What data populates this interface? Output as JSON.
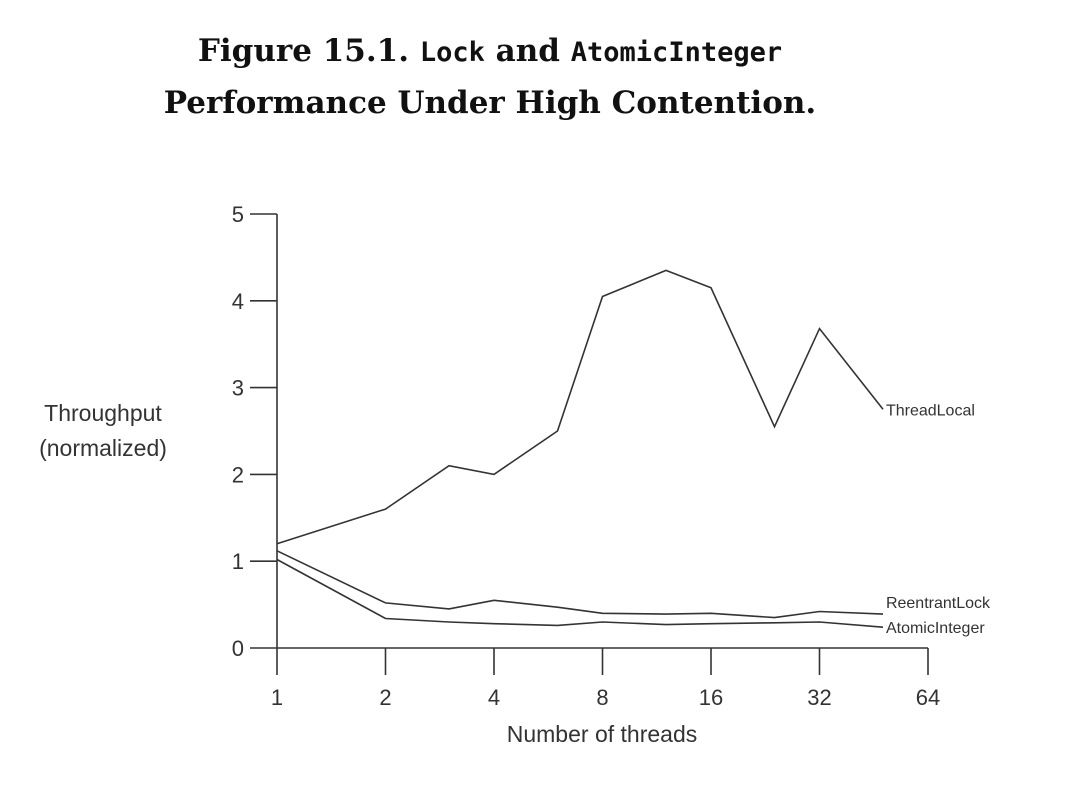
{
  "figure_title": {
    "prefix": "Figure 15.1.",
    "code1": "Lock",
    "and": "and",
    "code2": "AtomicInteger",
    "line2": "Performance Under High Contention."
  },
  "chart_data": {
    "type": "line",
    "xlabel": "Number of threads",
    "ylabel_line1": "Throughput",
    "ylabel_line2": "(normalized)",
    "x_scale": "log2",
    "xlim": [
      1,
      64
    ],
    "ylim": [
      0,
      5
    ],
    "x_ticks": [
      "1",
      "2",
      "4",
      "8",
      "16",
      "32",
      "64"
    ],
    "y_ticks": [
      "0",
      "1",
      "2",
      "3",
      "4",
      "5"
    ],
    "grid": false,
    "legend": "labels at line ends",
    "series": [
      {
        "name": "ThreadLocal",
        "x": [
          1,
          2,
          3,
          4,
          6,
          8,
          12,
          16,
          24,
          32,
          48
        ],
        "y": [
          1.2,
          1.6,
          2.1,
          2.0,
          2.5,
          4.05,
          4.35,
          4.15,
          2.55,
          3.68,
          2.75
        ]
      },
      {
        "name": "ReentrantLock",
        "x": [
          1,
          2,
          3,
          4,
          6,
          8,
          12,
          16,
          24,
          32,
          48
        ],
        "y": [
          1.12,
          0.52,
          0.45,
          0.55,
          0.47,
          0.4,
          0.39,
          0.4,
          0.35,
          0.42,
          0.39
        ]
      },
      {
        "name": "AtomicInteger",
        "x": [
          1,
          2,
          3,
          4,
          6,
          8,
          12,
          16,
          24,
          32,
          48
        ],
        "y": [
          1.02,
          0.34,
          0.3,
          0.28,
          0.26,
          0.3,
          0.27,
          0.28,
          0.29,
          0.3,
          0.24
        ]
      }
    ]
  }
}
